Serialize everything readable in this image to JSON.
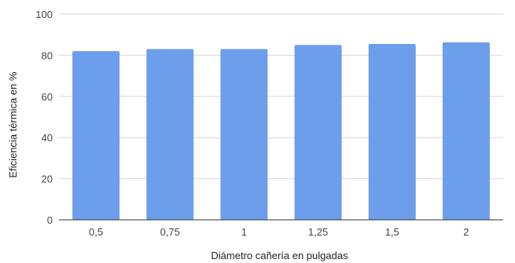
{
  "chart_data": {
    "type": "bar",
    "categories": [
      "0,5",
      "0,75",
      "1",
      "1,25",
      "1,5",
      "2"
    ],
    "values": [
      82,
      83,
      83,
      85,
      85.5,
      86.3
    ],
    "xlabel": "Diámetro cañería en pulgadas",
    "ylabel": "Eficiencia térmica en %",
    "ylim": [
      0,
      100
    ],
    "yticks": [
      "0",
      "20",
      "40",
      "60",
      "80",
      "100"
    ],
    "grid": true,
    "bar_color": "#6d9eeb"
  }
}
